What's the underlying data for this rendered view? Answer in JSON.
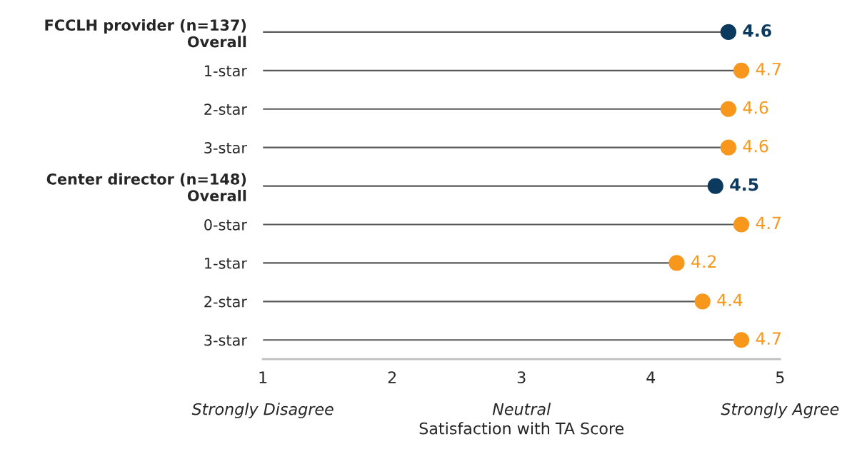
{
  "chart_data": {
    "type": "lollipop",
    "orientation": "horizontal",
    "categories": [
      "FCCLH provider (n=137)\nOverall",
      "1-star",
      "2-star",
      "3-star",
      "Center director (n=148)\nOverall",
      "0-star",
      "1-star",
      "2-star",
      "3-star"
    ],
    "values": [
      4.6,
      4.7,
      4.6,
      4.6,
      4.5,
      4.7,
      4.2,
      4.4,
      4.7
    ],
    "colors": [
      "#0b3a5e",
      "#f7981d",
      "#f7981d",
      "#f7981d",
      "#0b3a5e",
      "#f7981d",
      "#f7981d",
      "#f7981d",
      "#f7981d"
    ],
    "xlim": [
      1,
      5
    ],
    "xticks": [
      1,
      2,
      3,
      4,
      5
    ],
    "annotations": [
      "Strongly Disagree",
      "Neutral",
      "Strongly Agree"
    ],
    "xlabel": "Satisfaction with TA Score",
    "data_labels": true,
    "grid": false,
    "marker": "circle"
  }
}
